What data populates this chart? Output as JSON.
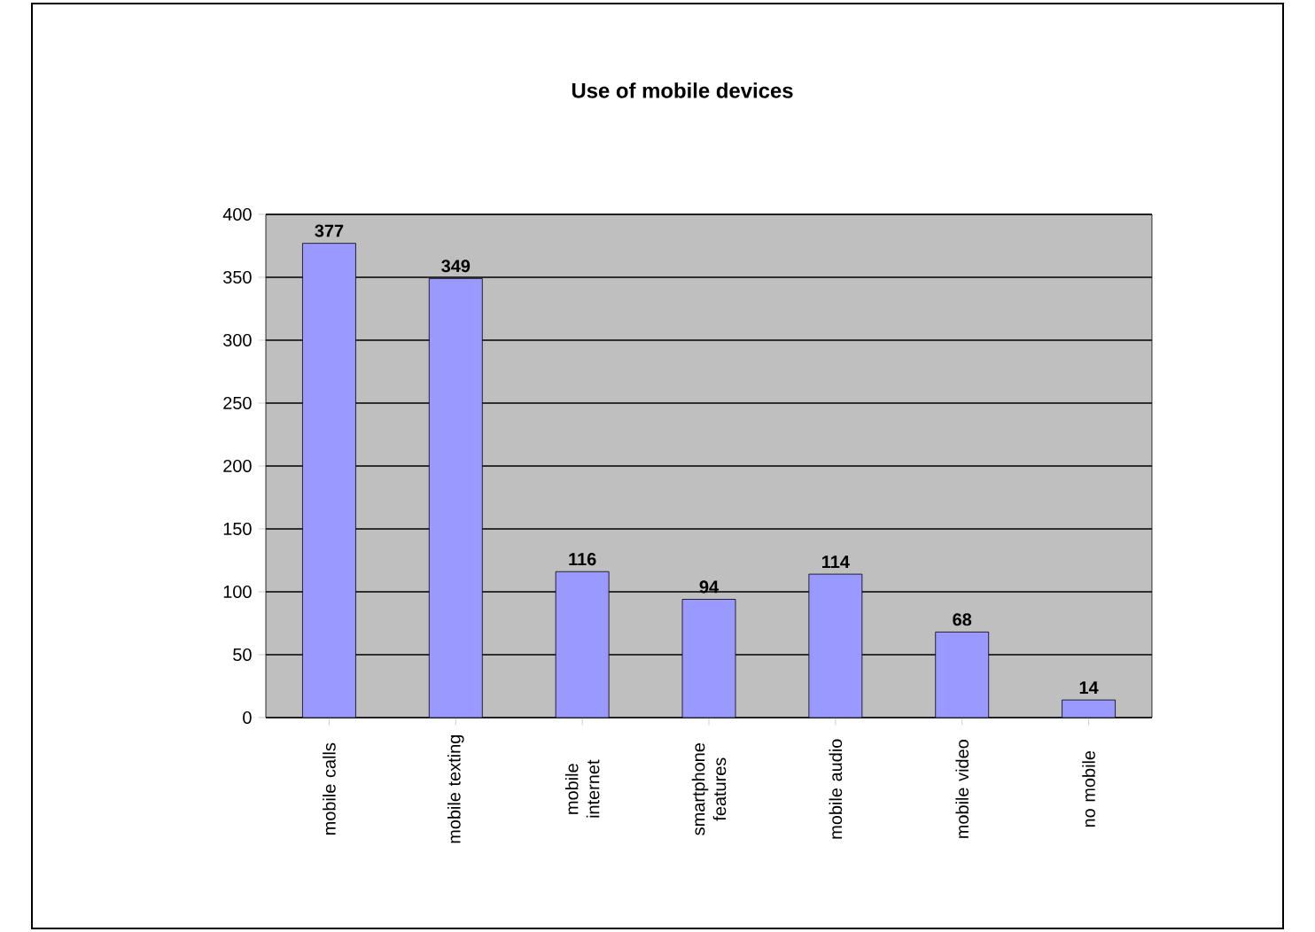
{
  "chart_data": {
    "type": "bar",
    "title": "Use of mobile devices",
    "categories": [
      "mobile calls",
      "mobile texting",
      "mobile internet",
      "smartphone features",
      "mobile audio",
      "mobile video",
      "no mobile"
    ],
    "values": [
      377,
      349,
      116,
      94,
      114,
      68,
      14
    ],
    "color": "#9999ff",
    "ylim": [
      0,
      400
    ],
    "yticks": [
      0,
      50,
      100,
      150,
      200,
      250,
      300,
      350,
      400
    ],
    "grid": "y",
    "data_labels": true
  }
}
